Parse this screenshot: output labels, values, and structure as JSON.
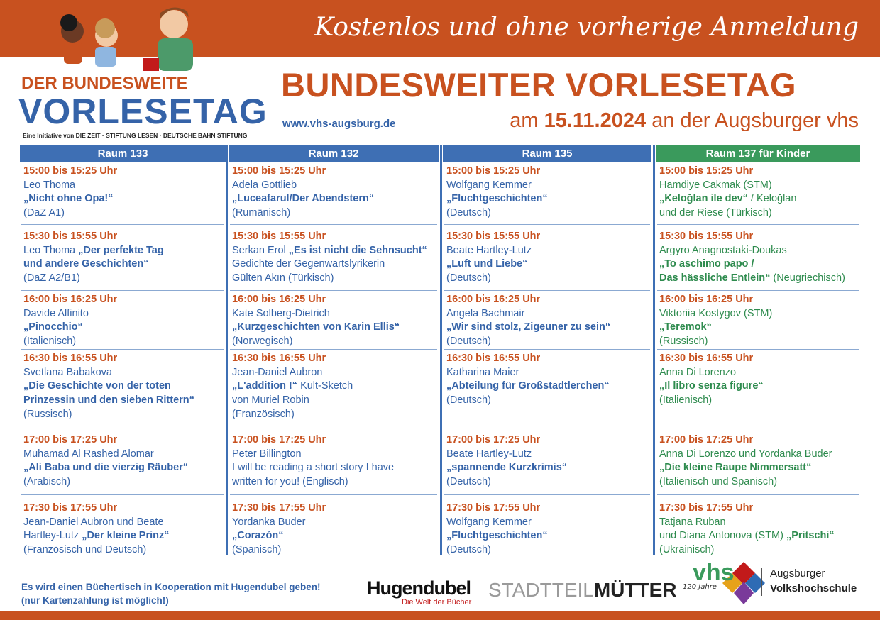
{
  "header": {
    "tagline": "Kostenlos und ohne vorherige Anmeldung",
    "logo_line1": "DER BUNDESWEITE",
    "logo_line2": "VORLESETAG",
    "logo_sub": "Eine Initiative von DIE ZEIT · STIFTUNG LESEN · DEUTSCHE BAHN STIFTUNG",
    "title": "BUNDESWEITER VORLESETAG",
    "website": "www.vhs-augsburg.de",
    "date_prefix": "am",
    "date": "15.11.2024",
    "date_suffix": "an der Augsburger vhs"
  },
  "columns": [
    {
      "room": "Raum 133",
      "color": "#3e6fb4",
      "text_color": "#3563a8",
      "slots": [
        {
          "time": "15:00 bis 15:25 Uhr",
          "lines": [
            [
              {
                "text": "Leo Thoma",
                "style": "plain"
              }
            ],
            [
              {
                "text": "„Nicht ohne Opa!“",
                "style": "title"
              }
            ],
            [
              {
                "text": "(DaZ A1)",
                "style": "plain"
              }
            ]
          ]
        },
        {
          "time": "15:30 bis 15:55 Uhr",
          "lines": [
            [
              {
                "text": "Leo Thoma ",
                "style": "plain"
              },
              {
                "text": "„Der perfekte Tag",
                "style": "title"
              }
            ],
            [
              {
                "text": "und andere Geschichten“",
                "style": "title"
              }
            ],
            [
              {
                "text": "(DaZ A2/B1)",
                "style": "plain"
              }
            ]
          ]
        },
        {
          "time": "16:00 bis 16:25 Uhr",
          "lines": [
            [
              {
                "text": "Davide Alfinito",
                "style": "plain"
              }
            ],
            [
              {
                "text": "„Pinocchio“",
                "style": "title"
              }
            ],
            [
              {
                "text": "(Italienisch)",
                "style": "plain"
              }
            ]
          ]
        },
        {
          "time": "16:30 bis 16:55 Uhr",
          "lines": [
            [
              {
                "text": "Svetlana Babakova",
                "style": "plain"
              }
            ],
            [
              {
                "text": "„Die Geschichte von der toten",
                "style": "title"
              }
            ],
            [
              {
                "text": "Prinzessin und den sieben Rittern“",
                "style": "title"
              }
            ],
            [
              {
                "text": "(Russisch)",
                "style": "plain"
              }
            ]
          ]
        },
        {
          "time": "17:00 bis 17:25 Uhr",
          "lines": [
            [
              {
                "text": "Muhamad Al Rashed Alomar",
                "style": "plain"
              }
            ],
            [
              {
                "text": "„Ali Baba und die vierzig Räuber“",
                "style": "title"
              }
            ],
            [
              {
                "text": "(Arabisch)",
                "style": "plain"
              }
            ]
          ]
        },
        {
          "time": "17:30 bis 17:55 Uhr",
          "lines": [
            [
              {
                "text": "Jean-Daniel Aubron und Beate",
                "style": "plain"
              }
            ],
            [
              {
                "text": "Hartley-Lutz ",
                "style": "plain"
              },
              {
                "text": "„Der kleine Prinz“",
                "style": "title"
              }
            ],
            [
              {
                "text": "(Französisch und Deutsch)",
                "style": "plain"
              }
            ]
          ]
        }
      ]
    },
    {
      "room": "Raum 132",
      "color": "#3e6fb4",
      "text_color": "#3563a8",
      "slots": [
        {
          "time": "15:00 bis 15:25 Uhr",
          "lines": [
            [
              {
                "text": "Adela Gottlieb",
                "style": "plain"
              }
            ],
            [
              {
                "text": "„Luceafarul/Der Abendstern“",
                "style": "title"
              }
            ],
            [
              {
                "text": "(Rumänisch)",
                "style": "plain"
              }
            ]
          ]
        },
        {
          "time": "15:30 bis 15:55 Uhr",
          "lines": [
            [
              {
                "text": "Serkan Erol ",
                "style": "plain"
              },
              {
                "text": "„Es ist nicht die Sehnsucht“",
                "style": "title"
              }
            ],
            [
              {
                "text": "Gedichte der Gegenwartslyrikerin",
                "style": "plain"
              }
            ],
            [
              {
                "text": "Gülten Akın (Türkisch)",
                "style": "plain"
              }
            ]
          ]
        },
        {
          "time": "16:00 bis 16:25 Uhr",
          "lines": [
            [
              {
                "text": "Kate Solberg-Dietrich",
                "style": "plain"
              }
            ],
            [
              {
                "text": "„Kurzgeschichten von Karin Ellis“",
                "style": "title"
              }
            ],
            [
              {
                "text": "(Norwegisch)",
                "style": "plain"
              }
            ]
          ]
        },
        {
          "time": "16:30 bis 16:55 Uhr",
          "lines": [
            [
              {
                "text": "Jean-Daniel Aubron",
                "style": "plain"
              }
            ],
            [
              {
                "text": "„L'addition !“",
                "style": "title"
              },
              {
                "text": " Kult-Sketch",
                "style": "plain"
              }
            ],
            [
              {
                "text": "von Muriel Robin",
                "style": "plain"
              }
            ],
            [
              {
                "text": "(Französisch)",
                "style": "plain"
              }
            ]
          ]
        },
        {
          "time": "17:00 bis 17:25 Uhr",
          "lines": [
            [
              {
                "text": "Peter Billington",
                "style": "plain"
              }
            ],
            [
              {
                "text": "I will be reading a short story I have",
                "style": "plain"
              }
            ],
            [
              {
                "text": "written for you! (Englisch)",
                "style": "plain"
              }
            ]
          ]
        },
        {
          "time": "17:30 bis 17:55 Uhr",
          "lines": [
            [
              {
                "text": "Yordanka Buder",
                "style": "plain"
              }
            ],
            [
              {
                "text": "„Corazón“",
                "style": "title"
              }
            ],
            [
              {
                "text": "(Spanisch)",
                "style": "plain"
              }
            ]
          ]
        }
      ]
    },
    {
      "room": "Raum 135",
      "color": "#3e6fb4",
      "text_color": "#3563a8",
      "slots": [
        {
          "time": "15:00 bis 15:25 Uhr",
          "lines": [
            [
              {
                "text": "Wolfgang Kemmer",
                "style": "plain"
              }
            ],
            [
              {
                "text": "„Fluchtgeschichten“",
                "style": "title"
              }
            ],
            [
              {
                "text": "(Deutsch)",
                "style": "plain"
              }
            ]
          ]
        },
        {
          "time": "15:30 bis 15:55 Uhr",
          "lines": [
            [
              {
                "text": "Beate Hartley-Lutz",
                "style": "plain"
              }
            ],
            [
              {
                "text": "„Luft und Liebe“",
                "style": "title"
              }
            ],
            [
              {
                "text": "(Deutsch)",
                "style": "plain"
              }
            ]
          ]
        },
        {
          "time": "16:00 bis 16:25 Uhr",
          "lines": [
            [
              {
                "text": "Angela Bachmair",
                "style": "plain"
              }
            ],
            [
              {
                "text": "„Wir sind stolz, Zigeuner zu sein“",
                "style": "title"
              }
            ],
            [
              {
                "text": "(Deutsch)",
                "style": "plain"
              }
            ]
          ]
        },
        {
          "time": "16:30 bis 16:55 Uhr",
          "lines": [
            [
              {
                "text": "Katharina Maier",
                "style": "plain"
              }
            ],
            [
              {
                "text": "„Abteilung für Großstadtlerchen“",
                "style": "title"
              }
            ],
            [
              {
                "text": "(Deutsch)",
                "style": "plain"
              }
            ]
          ]
        },
        {
          "time": "17:00 bis 17:25 Uhr",
          "lines": [
            [
              {
                "text": "Beate Hartley-Lutz",
                "style": "plain"
              }
            ],
            [
              {
                "text": "„spannende Kurzkrimis“",
                "style": "title"
              }
            ],
            [
              {
                "text": "(Deutsch)",
                "style": "plain"
              }
            ]
          ]
        },
        {
          "time": "17:30 bis 17:55 Uhr",
          "lines": [
            [
              {
                "text": "Wolfgang Kemmer",
                "style": "plain"
              }
            ],
            [
              {
                "text": "„Fluchtgeschichten“",
                "style": "title"
              }
            ],
            [
              {
                "text": "(Deutsch)",
                "style": "plain"
              }
            ]
          ]
        }
      ]
    },
    {
      "room": "Raum 137 für Kinder",
      "color": "#3a9a5c",
      "text_color": "#2e8b4e",
      "slots": [
        {
          "time": "15:00 bis 15:25 Uhr",
          "lines": [
            [
              {
                "text": "Hamdiye Cakmak (STM)",
                "style": "plain"
              }
            ],
            [
              {
                "text": "„Keloğlan ile dev“",
                "style": "title"
              },
              {
                "text": " / Keloğlan",
                "style": "plain"
              }
            ],
            [
              {
                "text": "und der Riese (Türkisch)",
                "style": "plain"
              }
            ]
          ]
        },
        {
          "time": "15:30 bis 15:55 Uhr",
          "lines": [
            [
              {
                "text": "Argyro Anagnostaki-Doukas",
                "style": "plain"
              }
            ],
            [
              {
                "text": "„To aschimo papo /",
                "style": "title"
              }
            ],
            [
              {
                "text": "Das hässliche Entlein“",
                "style": "title"
              },
              {
                "text": " (Neugriechisch)",
                "style": "plain"
              }
            ]
          ]
        },
        {
          "time": "16:00 bis 16:25 Uhr",
          "lines": [
            [
              {
                "text": "Viktoriia Kostygov (STM)",
                "style": "plain"
              }
            ],
            [
              {
                "text": "„Teremok“",
                "style": "title"
              }
            ],
            [
              {
                "text": "(Russisch)",
                "style": "plain"
              }
            ]
          ]
        },
        {
          "time": "16:30 bis 16:55 Uhr",
          "lines": [
            [
              {
                "text": "Anna Di Lorenzo",
                "style": "plain"
              }
            ],
            [
              {
                "text": "„Il libro senza figure“",
                "style": "title"
              }
            ],
            [
              {
                "text": "(Italienisch)",
                "style": "plain"
              }
            ]
          ]
        },
        {
          "time": "17:00 bis 17:25 Uhr",
          "lines": [
            [
              {
                "text": "Anna Di Lorenzo und Yordanka Buder",
                "style": "plain"
              }
            ],
            [
              {
                "text": "„Die kleine Raupe Nimmersatt“",
                "style": "title"
              }
            ],
            [
              {
                "text": "(Italienisch und Spanisch)",
                "style": "plain"
              }
            ]
          ]
        },
        {
          "time": "17:30 bis 17:55 Uhr",
          "lines": [
            [
              {
                "text": "Tatjana Ruban",
                "style": "plain"
              }
            ],
            [
              {
                "text": "und Diana Antonova (STM) ",
                "style": "plain"
              },
              {
                "text": "„Pritschi“",
                "style": "title"
              }
            ],
            [
              {
                "text": "(Ukrainisch)",
                "style": "plain"
              }
            ]
          ]
        }
      ]
    }
  ],
  "footer": {
    "note_line1": "Es wird einen Büchertisch in Kooperation mit Hugendubel geben!",
    "note_line2": "(nur Kartenzahlung ist möglich!)",
    "hugendubel": "Hugendubel",
    "hugendubel_claim": "Die Welt der Bücher",
    "stadtteil": "STADTTEIL",
    "muetter": "MÜTTER",
    "vhs": "vhs",
    "vhs_years": "120 Jahre",
    "vhs_line1": "Augsburger",
    "vhs_line2": "Volkshochschule"
  }
}
